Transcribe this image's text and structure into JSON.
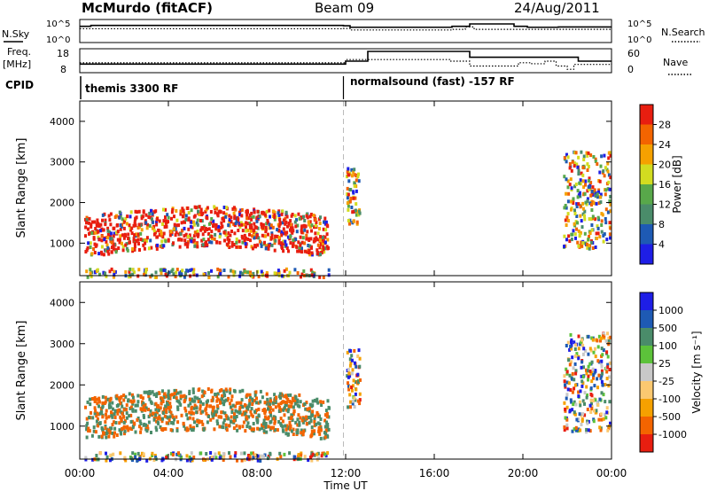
{
  "header": {
    "station": "McMurdo (fitACF)",
    "beam": "Beam 09",
    "date": "24/Aug/2011"
  },
  "labels": {
    "nsky": "N.Sky",
    "nsearch": "N.Search",
    "freq_line1": "Freq.",
    "freq_line2": "[MHz]",
    "nave": "Nave",
    "cpid": "CPID",
    "cpid_left": "themis 3300 RF",
    "cpid_right": "normalsound (fast) -157 RF",
    "noise_left_top": "10^5",
    "noise_left_bottom": "10^0",
    "noise_right_top": "10^5",
    "noise_right_bottom": "10^0",
    "freq_top": "18",
    "freq_bottom": "8",
    "nave_top": "60",
    "nave_bottom": "0"
  },
  "colors": {
    "power_scale": [
      "#1e1ee6",
      "#1e5ab4",
      "#4a8c6a",
      "#58a84a",
      "#d2dc20",
      "#f5a100",
      "#f36400",
      "#e81e10"
    ],
    "velocity_scale": [
      "#e81e10",
      "#f36400",
      "#f5a100",
      "#fbc870",
      "#c8c8c8",
      "#5cc23a",
      "#4a8c6a",
      "#1e5ab4",
      "#1e1ee6"
    ]
  },
  "chart_data": {
    "type": "heatmap",
    "x_label": "Time UT",
    "x_ticks": [
      "00:00",
      "04:00",
      "08:00",
      "12:00",
      "16:00",
      "20:00",
      "00:00"
    ],
    "x_range_hours": [
      0,
      24
    ],
    "cpid_change_hour": 11.9,
    "panels": [
      {
        "name": "power",
        "ylabel": "Slant Range [km]",
        "yticks": [
          "1000",
          "2000",
          "3000",
          "4000"
        ],
        "ylim": [
          200,
          4500
        ],
        "colorbar_label": "Power [dB]",
        "colorbar_ticks": [
          "4",
          "8",
          "12",
          "16",
          "20",
          "24",
          "28"
        ],
        "colorbar_range": [
          0,
          32
        ]
      },
      {
        "name": "velocity",
        "ylabel": "Slant Range [km]",
        "yticks": [
          "1000",
          "2000",
          "3000",
          "4000"
        ],
        "ylim": [
          200,
          4500
        ],
        "colorbar_label": "Velocity [m s⁻¹]",
        "colorbar_ticks": [
          "-1000",
          "-500",
          "-100",
          "-25",
          "25",
          "100",
          "500",
          "1000"
        ]
      }
    ],
    "noise_sky": [
      [
        0,
        4.2
      ],
      [
        0.5,
        4.5
      ],
      [
        11.9,
        4.4
      ],
      [
        12.2,
        3.9
      ],
      [
        16.8,
        4.2
      ],
      [
        17.6,
        5.0
      ],
      [
        19.6,
        4.2
      ],
      [
        20.2,
        3.9
      ],
      [
        21.6,
        4.0
      ],
      [
        24,
        4.0
      ]
    ],
    "noise_search": [
      [
        0,
        3.4
      ],
      [
        11.9,
        3.5
      ],
      [
        12.2,
        3.0
      ],
      [
        16.8,
        3.2
      ],
      [
        17.4,
        4.0
      ],
      [
        17.8,
        3.2
      ],
      [
        24,
        3.3
      ]
    ],
    "frequency_mhz": [
      [
        0,
        11.5
      ],
      [
        11.9,
        11.5
      ],
      [
        12.0,
        13
      ],
      [
        13.0,
        18
      ],
      [
        16.7,
        18
      ],
      [
        17.6,
        15
      ],
      [
        20.4,
        15
      ],
      [
        22.5,
        13
      ],
      [
        24,
        13
      ]
    ],
    "nave": [
      [
        0,
        25
      ],
      [
        11.9,
        25
      ],
      [
        12.0,
        35
      ],
      [
        16.7,
        30
      ],
      [
        17.6,
        15
      ],
      [
        19.6,
        15
      ],
      [
        19.8,
        25
      ],
      [
        20.4,
        22
      ],
      [
        21.0,
        30
      ],
      [
        21.5,
        15
      ],
      [
        22.0,
        5
      ],
      [
        22.3,
        20
      ],
      [
        24,
        22
      ]
    ],
    "echo_regions": [
      {
        "hours": [
          0.2,
          11.2
        ],
        "range_km": [
          700,
          1700
        ],
        "feature": "main ionospheric scatter band"
      },
      {
        "hours": [
          0.2,
          11.2
        ],
        "range_km": [
          200,
          400
        ],
        "feature": "near-range ground scatter"
      },
      {
        "hours": [
          12.0,
          12.6
        ],
        "range_km": [
          1500,
          2900
        ],
        "feature": "isolated echoes"
      },
      {
        "hours": [
          21.8,
          23.9
        ],
        "range_km": [
          900,
          3300
        ],
        "feature": "returning scatter"
      }
    ]
  }
}
